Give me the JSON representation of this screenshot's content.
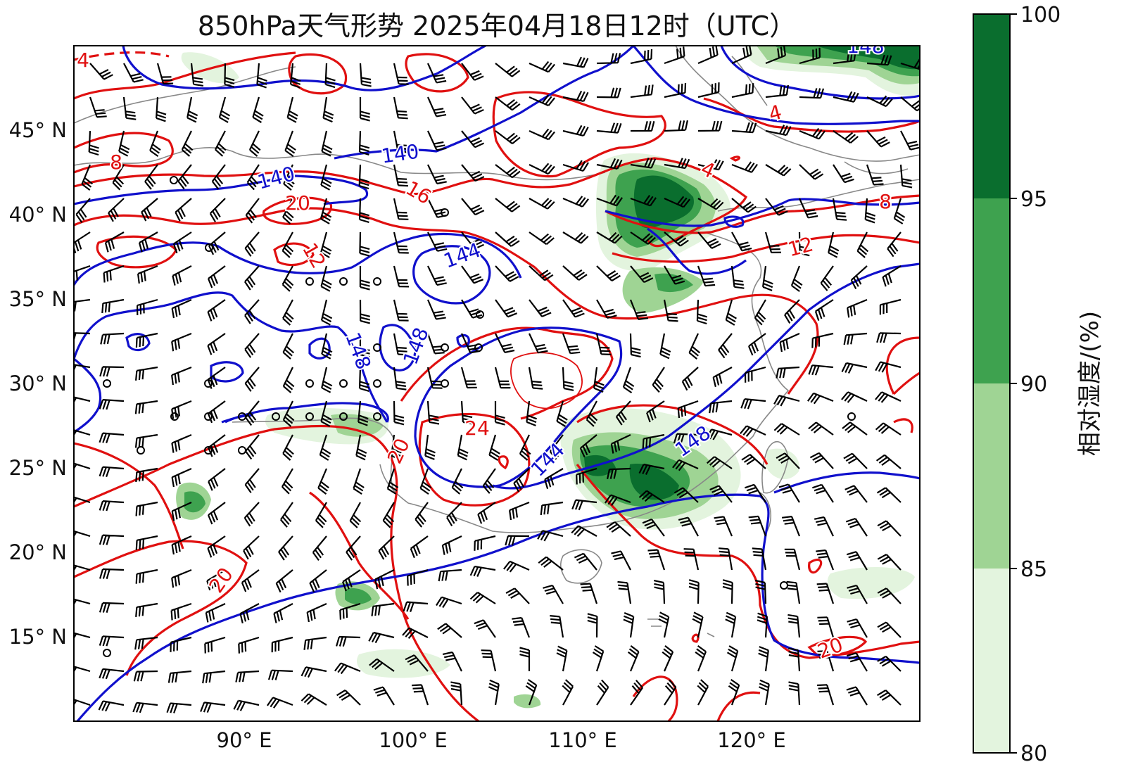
{
  "title": "850hPa天气形势 2025年04月18日12时（UTC）",
  "map": {
    "lon_range": [
      80,
      130
    ],
    "lat_range": [
      10,
      50
    ],
    "lon_ticks": [
      "90° E",
      "100° E",
      "110° E",
      "120° E"
    ],
    "lat_ticks": [
      "45° N",
      "40° N",
      "35° N",
      "30° N",
      "25° N",
      "20° N",
      "15° N"
    ],
    "geopotential_color": "#1010cc",
    "temperature_color": "#e01010",
    "wind_barb_color": "#000000",
    "coastline_color": "#888888",
    "geopotential_labels": [
      "140",
      "140",
      "144",
      "148",
      "148",
      "148",
      "144",
      "148"
    ],
    "temperature_labels": [
      "4",
      "8",
      "20",
      "16",
      "12",
      "4",
      "8",
      "12",
      "24",
      "20",
      "20",
      "20",
      "4"
    ],
    "calm_wind_marker": "circle"
  },
  "colorbar": {
    "label": "相对湿度/(%)",
    "ticks": [
      "100",
      "95",
      "90",
      "85",
      "80"
    ],
    "colors": [
      "#0a6e2e",
      "#3ea24f",
      "#9fd494",
      "#e3f4de"
    ]
  }
}
